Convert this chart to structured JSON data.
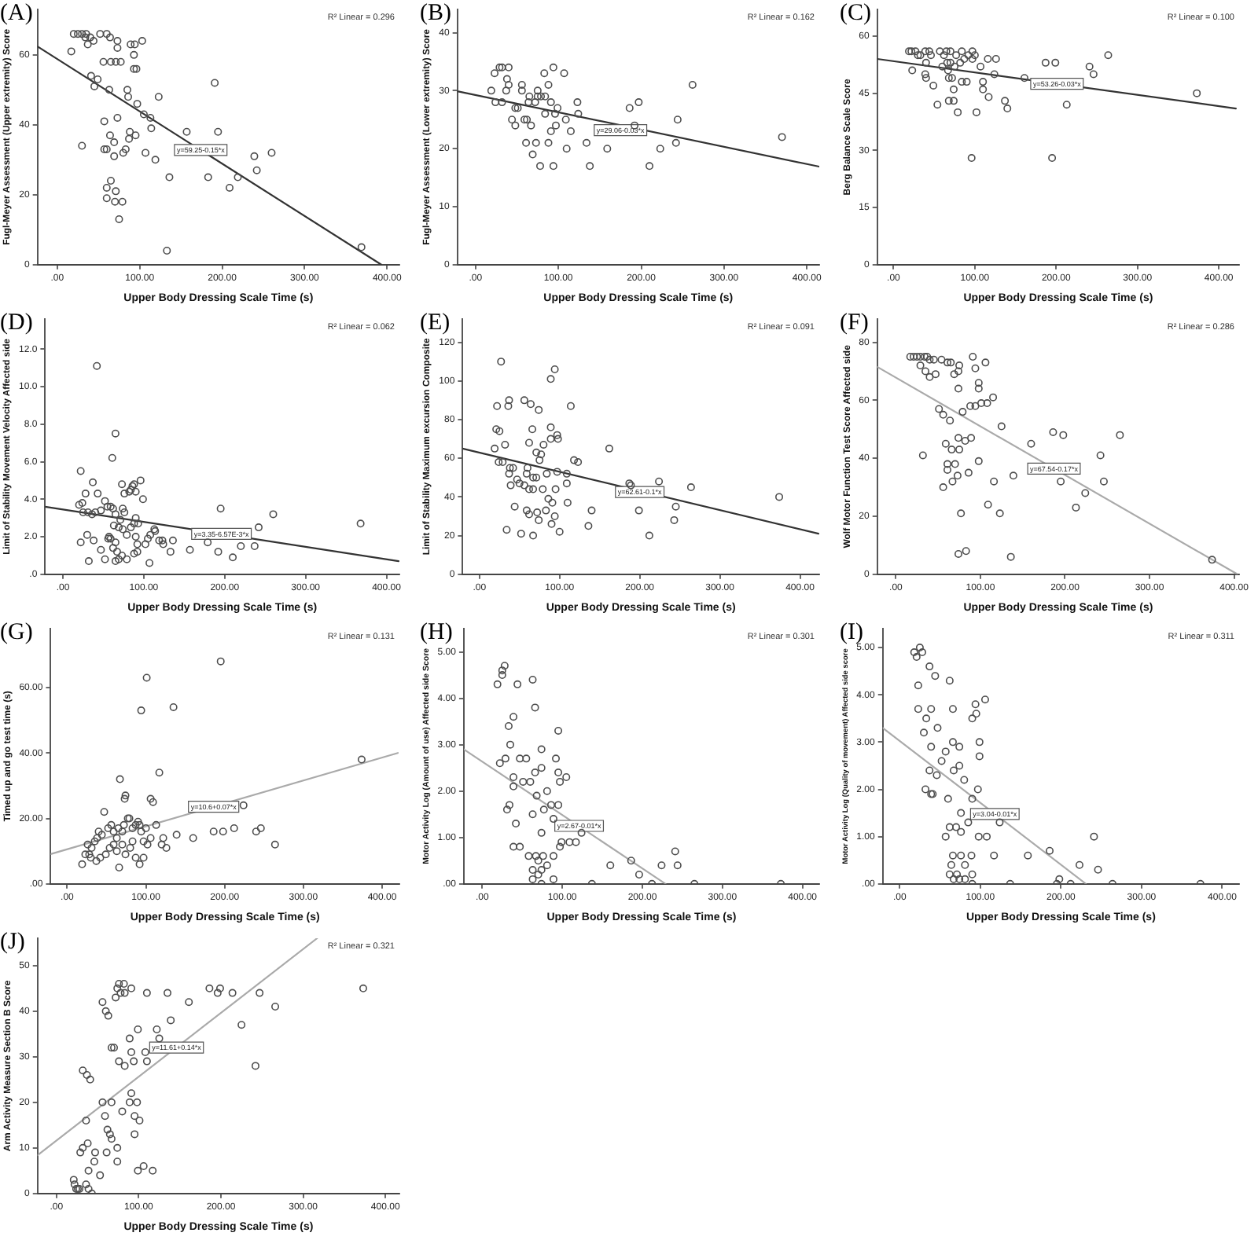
{
  "chart_data": [
    {
      "type": "scatter",
      "title": "(A)",
      "xlabel": "Upper Body Dressing Scale Time (s)",
      "ylabel": "Fugl-Meyer Assessment (Upper extremity) Score",
      "xlim": [
        -24,
        415
      ],
      "ylim": [
        0,
        73
      ],
      "xticks": [
        {
          "value": 0,
          "label": ".00"
        },
        {
          "value": 100,
          "label": "100.00"
        },
        {
          "value": 200,
          "label": "200.00"
        },
        {
          "value": 300,
          "label": "300.00"
        },
        {
          "value": 400,
          "label": "400.00"
        }
      ],
      "yticks": [
        0,
        20,
        40,
        60
      ],
      "marker": "circle",
      "annotations": [
        "R² Linear = 0.296",
        {
          "text": "y=59.25-0.15*x",
          "x": 174,
          "y": 32.8
        }
      ],
      "series": [
        {
          "color": "#4d4d4d",
          "x": [
            20,
            25,
            30,
            35,
            40,
            17,
            34,
            37,
            44,
            52,
            60,
            64,
            73,
            73,
            89,
            94,
            103,
            93,
            93,
            96,
            56,
            65,
            71,
            77,
            41,
            49,
            45,
            63,
            85,
            86,
            97,
            123,
            105,
            113,
            73,
            57,
            114,
            64,
            88,
            95,
            87,
            69,
            83,
            80,
            57,
            60,
            69,
            30,
            107,
            119,
            157,
            191,
            195,
            239,
            242,
            260,
            183,
            136,
            209,
            219,
            65,
            60,
            60,
            71,
            70,
            79,
            75,
            133,
            369
          ],
          "values": [
            66,
            66,
            66,
            66,
            65,
            61,
            65,
            63,
            64,
            66,
            66,
            65,
            64,
            62,
            63,
            63,
            64,
            60,
            56,
            56,
            58,
            58,
            58,
            58,
            54,
            53,
            51,
            50,
            50,
            48,
            46,
            48,
            43,
            42,
            42,
            41,
            39,
            37,
            38,
            37,
            36,
            35,
            33,
            32,
            33,
            33,
            31,
            34,
            32,
            30,
            38,
            52,
            38,
            31,
            27,
            32,
            25,
            25,
            22,
            25,
            24,
            22,
            19,
            21,
            18,
            18,
            13,
            4,
            5
          ]
        },
        {
          "type": "line",
          "marker": "none",
          "color": "#333333",
          "x": [
            -24,
            393
          ],
          "values": [
            62.4,
            0
          ]
        }
      ]
    },
    {
      "type": "scatter",
      "title": "(B)",
      "xlabel": "Upper Body Dressing Scale Time (s)",
      "ylabel": "Fugl-Meyer Assessment (Lower extremity) Score",
      "xlim": [
        -22,
        415
      ],
      "ylim": [
        0,
        44
      ],
      "xticks": [
        {
          "value": 0,
          "label": ".00"
        },
        {
          "value": 100,
          "label": "100.00"
        },
        {
          "value": 200,
          "label": "200.00"
        },
        {
          "value": 300,
          "label": "300.00"
        },
        {
          "value": 400,
          "label": "400.00"
        }
      ],
      "yticks": [
        0,
        10,
        20,
        30,
        40
      ],
      "marker": "circle",
      "annotations": [
        "R² Linear = 0.162",
        {
          "text": "y=29.06-0.03*x",
          "x": 175,
          "y": 23.2
        }
      ],
      "series": [
        {
          "color": "#4d4d4d",
          "x": [
            19,
            23,
            24,
            29,
            32,
            32,
            37,
            40,
            38,
            40,
            44,
            48,
            48,
            51,
            56,
            56,
            59,
            61,
            62,
            64,
            65,
            67,
            69,
            72,
            73,
            75,
            75,
            78,
            79,
            84,
            84,
            83,
            88,
            88,
            91,
            91,
            94,
            94,
            96,
            99,
            97,
            107,
            109,
            110,
            115,
            123,
            124,
            134,
            138,
            159,
            186,
            197,
            192,
            210,
            223,
            242,
            244,
            262,
            370
          ],
          "values": [
            30,
            33,
            28,
            34,
            34,
            28,
            30,
            31,
            32,
            34,
            25,
            24,
            27,
            27,
            31,
            30,
            25,
            21,
            25,
            28,
            29,
            24,
            19,
            28,
            21,
            29,
            30,
            17,
            29,
            29,
            26,
            33,
            31,
            21,
            28,
            23,
            34,
            17,
            26,
            27,
            24,
            33,
            25,
            20,
            23,
            28,
            26,
            21,
            17,
            20,
            27,
            28,
            24,
            17,
            20,
            21,
            25,
            31,
            22
          ]
        },
        {
          "type": "line",
          "marker": "none",
          "color": "#333333",
          "x": [
            -22,
            415
          ],
          "values": [
            29.9,
            16.9
          ]
        }
      ]
    },
    {
      "type": "scatter",
      "title": "(C)",
      "xlabel": "Upper Body Dressing Scale Time (s)",
      "ylabel": "Berg Balance Scale Score",
      "xlim": [
        -20,
        425
      ],
      "ylim": [
        0,
        67
      ],
      "xticks": [
        {
          "value": 0,
          "label": ".00"
        },
        {
          "value": 100,
          "label": "100.00"
        },
        {
          "value": 200,
          "label": "200.00"
        },
        {
          "value": 300,
          "label": "300.00"
        },
        {
          "value": 400,
          "label": "400.00"
        }
      ],
      "yticks": [
        0,
        15,
        30,
        45,
        60
      ],
      "marker": "circle",
      "annotations": [
        "R² Linear = 0.100",
        {
          "text": "y=53.26-0.03*x",
          "x": 201,
          "y": 47.5
        }
      ],
      "series": [
        {
          "color": "#4d4d4d",
          "x": [
            19,
            22,
            27,
            23,
            30,
            33,
            39,
            44,
            46,
            40,
            39,
            40,
            49,
            54,
            57,
            62,
            60,
            65,
            66,
            67,
            68,
            70,
            70,
            72,
            75,
            77,
            74,
            68,
            74,
            79,
            82,
            84,
            84,
            87,
            90,
            92,
            97,
            97,
            100,
            102,
            107,
            110,
            110,
            116,
            117,
            124,
            126,
            137,
            140,
            161,
            187,
            199,
            213,
            241,
            246,
            264,
            373,
            96,
            195
          ],
          "values": [
            56,
            56,
            56,
            51,
            55,
            55,
            56,
            56,
            55,
            53,
            50,
            49,
            47,
            42,
            56,
            55,
            52,
            56,
            53,
            51,
            49,
            56,
            53,
            49,
            52,
            55,
            46,
            43,
            43,
            40,
            53,
            56,
            48,
            54,
            48,
            55,
            56,
            54,
            55,
            40,
            52,
            48,
            46,
            54,
            44,
            50,
            54,
            43,
            41,
            49,
            53,
            53,
            42,
            52,
            50,
            55,
            45,
            28,
            28
          ]
        },
        {
          "type": "line",
          "marker": "none",
          "color": "#333333",
          "x": [
            -20,
            421
          ],
          "values": [
            54.0,
            41.0
          ]
        }
      ]
    },
    {
      "type": "scatter",
      "title": "(D)",
      "xlabel": "Upper Body Dressing Scale Time (s)",
      "ylabel": "Limit of Stability Movement Velocity Affected side",
      "xlim": [
        -22,
        416
      ],
      "ylim": [
        0,
        13.6
      ],
      "xticks": [
        {
          "value": 0,
          "label": ".00"
        },
        {
          "value": 100,
          "label": "100.00"
        },
        {
          "value": 200,
          "label": "200.00"
        },
        {
          "value": 300,
          "label": "300.00"
        },
        {
          "value": 400,
          "label": "400.00"
        }
      ],
      "yticks": [
        {
          "value": 0,
          "label": ".0"
        },
        {
          "value": 2,
          "label": "2.0"
        },
        {
          "value": 4,
          "label": "4.0"
        },
        {
          "value": 6,
          "label": "6.0"
        },
        {
          "value": 8,
          "label": "8.0"
        },
        {
          "value": 10,
          "label": "10.0"
        },
        {
          "value": 12,
          "label": "12.0"
        }
      ],
      "marker": "circle",
      "annotations": [
        "R² Linear = 0.062",
        {
          "text": "y=3.35-6.57E-3*x",
          "x": 196,
          "y": 2.15
        }
      ],
      "series": [
        {
          "color": "#4d4d4d",
          "x": [
            22,
            42,
            65,
            61,
            20,
            24,
            28,
            37,
            43,
            25,
            31,
            36,
            40,
            47,
            55,
            59,
            62,
            52,
            73,
            76,
            74,
            76,
            65,
            71,
            63,
            69,
            74,
            79,
            84,
            88,
            90,
            93,
            86,
            88,
            90,
            96,
            99,
            90,
            92,
            84,
            82,
            22,
            30,
            38,
            47,
            56,
            59,
            57,
            65,
            62,
            67,
            73,
            69,
            52,
            32,
            65,
            79,
            88,
            92,
            102,
            105,
            108,
            113,
            114,
            119,
            123,
            124,
            107,
            133,
            136,
            157,
            179,
            192,
            195,
            210,
            220,
            237,
            242,
            260,
            368
          ],
          "values": [
            5.5,
            11.1,
            7.5,
            6.2,
            3.7,
            3.8,
            4.3,
            4.9,
            4.3,
            3.3,
            3.3,
            3.2,
            3.3,
            3.4,
            3.6,
            3.6,
            3.5,
            3.9,
            4.8,
            4.3,
            3.5,
            3.3,
            3.2,
            2.9,
            2.6,
            2.5,
            2.4,
            2.1,
            2.5,
            2.7,
            3.0,
            2.7,
            4.7,
            4.8,
            4.4,
            5.0,
            4.0,
            2.0,
            1.6,
            4.5,
            4.4,
            1.7,
            2.1,
            1.8,
            1.3,
            1.9,
            1.9,
            2.0,
            1.7,
            1.4,
            1.2,
            1.0,
            0.8,
            0.8,
            0.7,
            0.7,
            0.8,
            1.1,
            1.2,
            1.6,
            1.9,
            2.1,
            2.4,
            2.3,
            1.8,
            1.8,
            1.6,
            0.6,
            1.2,
            1.8,
            1.3,
            1.7,
            1.2,
            3.5,
            0.9,
            1.5,
            1.5,
            2.5,
            3.2,
            2.7
          ]
        },
        {
          "type": "line",
          "marker": "none",
          "color": "#333333",
          "x": [
            -22,
            415
          ],
          "values": [
            3.6,
            0.7
          ]
        }
      ]
    },
    {
      "type": "scatter",
      "title": "(E)",
      "xlabel": "Upper Body Dressing Scale Time (s)",
      "ylabel": "Limit of Stability Maximum excursion Composite",
      "xlim": [
        -21,
        424
      ],
      "ylim": [
        0,
        132
      ],
      "xticks": [
        {
          "value": 0,
          "label": ".00"
        },
        {
          "value": 100,
          "label": "100.00"
        },
        {
          "value": 200,
          "label": "200.00"
        },
        {
          "value": 300,
          "label": "300.00"
        },
        {
          "value": 400,
          "label": "400.00"
        }
      ],
      "yticks": [
        0,
        20,
        40,
        60,
        80,
        100,
        120
      ],
      "marker": "circle",
      "annotations": [
        "R² Linear = 0.091",
        {
          "text": "y=62.61-0.1*x",
          "x": 200,
          "y": 42.5
        }
      ],
      "series": [
        {
          "color": "#4d4d4d",
          "x": [
            27,
            22,
            37,
            36,
            21,
            25,
            19,
            32,
            24,
            29,
            38,
            42,
            37,
            39,
            47,
            50,
            44,
            34,
            52,
            67,
            56,
            64,
            74,
            66,
            62,
            71,
            80,
            77,
            75,
            60,
            59,
            67,
            71,
            56,
            67,
            62,
            79,
            84,
            86,
            91,
            59,
            62,
            72,
            74,
            83,
            94,
            90,
            100,
            89,
            94,
            89,
            97,
            98,
            89,
            97,
            95,
            109,
            109,
            110,
            118,
            123,
            114,
            140,
            136,
            162,
            187,
            189,
            199,
            212,
            224,
            243,
            245,
            264,
            374
          ],
          "values": [
            110,
            87,
            90,
            87,
            75,
            74,
            65,
            67,
            58,
            58,
            55,
            55,
            52,
            46,
            49,
            47,
            35,
            23,
            21,
            20,
            90,
            88,
            85,
            75,
            68,
            63,
            67,
            62,
            59,
            55,
            52,
            50,
            50,
            46,
            44,
            44,
            44,
            52,
            39,
            37,
            33,
            31,
            32,
            28,
            33,
            30,
            26,
            22,
            101,
            106,
            76,
            72,
            70,
            70,
            53,
            44,
            52,
            47,
            37,
            59,
            58,
            87,
            33,
            25,
            65,
            47,
            46,
            33,
            20,
            48,
            28,
            35,
            45,
            40
          ]
        },
        {
          "type": "line",
          "marker": "none",
          "color": "#333333",
          "x": [
            -21,
            423
          ],
          "values": [
            65,
            21
          ]
        }
      ]
    },
    {
      "type": "scatter",
      "title": "(F)",
      "xlabel": "Upper Body Dressing Scale Time (s)",
      "ylabel": "Wolf Motor Function Test Score Affected side",
      "xlim": [
        -22,
        406
      ],
      "ylim": [
        0,
        88
      ],
      "xticks": [
        {
          "value": 0,
          "label": ".00"
        },
        {
          "value": 100,
          "label": "100.00"
        },
        {
          "value": 200,
          "label": "200.00"
        },
        {
          "value": 300,
          "label": "300.00"
        },
        {
          "value": 400,
          "label": "400.00"
        }
      ],
      "yticks": [
        0,
        20,
        40,
        60,
        80
      ],
      "marker": "circle",
      "annotations": [
        "R² Linear = 0.286",
        {
          "text": "y=67.54-0.17*x",
          "x": 187,
          "y": 36.4
        }
      ],
      "series": [
        {
          "color": "#4d4d4d",
          "x": [
            17,
            21,
            25,
            29,
            34,
            37,
            40,
            45,
            54,
            61,
            65,
            75,
            91,
            106,
            94,
            29,
            35,
            40,
            47,
            69,
            74,
            74,
            98,
            98,
            115,
            101,
            94,
            88,
            108,
            79,
            51,
            56,
            64,
            125,
            59,
            66,
            74,
            82,
            89,
            75,
            32,
            61,
            61,
            70,
            86,
            73,
            67,
            56,
            98,
            116,
            139,
            109,
            123,
            77,
            74,
            83,
            136,
            160,
            186,
            198,
            195,
            224,
            213,
            242,
            246,
            265,
            374
          ],
          "values": [
            75,
            75,
            75,
            75,
            75,
            75,
            74,
            74,
            74,
            73,
            73,
            72,
            75,
            73,
            71,
            72,
            70,
            68,
            69,
            69,
            70,
            64,
            66,
            64,
            61,
            59,
            58,
            58,
            59,
            56,
            57,
            55,
            53,
            51,
            45,
            43,
            47,
            46,
            47,
            43,
            41,
            38,
            36,
            38,
            35,
            34,
            32,
            30,
            39,
            32,
            34,
            24,
            21,
            21,
            7,
            8,
            6,
            45,
            49,
            48,
            32,
            28,
            23,
            41,
            32,
            48,
            5
          ]
        },
        {
          "type": "line",
          "marker": "none",
          "color": "#aaaaaa",
          "x": [
            -22,
            404
          ],
          "values": [
            71.5,
            0
          ]
        }
      ]
    },
    {
      "type": "scatter",
      "title": "(G)",
      "xlabel": "Upper Body Dressing Scale Time (s)",
      "ylabel": "Timed up and go test time (s)",
      "xlim": [
        -21,
        422
      ],
      "ylim": [
        0,
        78
      ],
      "xticks": [
        {
          "value": 0,
          "label": ".00"
        },
        {
          "value": 100,
          "label": "100.00"
        },
        {
          "value": 200,
          "label": "200.00"
        },
        {
          "value": 300,
          "label": "300.00"
        },
        {
          "value": 400,
          "label": "400.00"
        }
      ],
      "yticks": [
        {
          "value": 0,
          "label": ".00"
        },
        {
          "value": 20,
          "label": "20.00"
        },
        {
          "value": 40,
          "label": "40.00"
        },
        {
          "value": 60,
          "label": "60.00"
        }
      ],
      "marker": "circle",
      "annotations": [
        "R² Linear = 0.131",
        {
          "text": "y=10.6+0.07*x",
          "x": 186,
          "y": 23.6
        }
      ],
      "series": [
        {
          "color": "#4d4d4d",
          "x": [
            19,
            23,
            26,
            28,
            31,
            35,
            38,
            40,
            44,
            47,
            52,
            56,
            59,
            59,
            63,
            66,
            65,
            67,
            70,
            72,
            73,
            74,
            77,
            79,
            83,
            87,
            90,
            92,
            94,
            101,
            94,
            97,
            100,
            106,
            109,
            117,
            122,
            126,
            135,
            139,
            160,
            186,
            195,
            198,
            212,
            224,
            240,
            246,
            264,
            374,
            30,
            37,
            42,
            49,
            54,
            63,
            70,
            74,
            80,
            83,
            87,
            92,
            97,
            102,
            106,
            113,
            120
          ],
          "values": [
            6,
            9,
            12,
            9,
            11,
            13,
            14,
            16,
            15,
            22,
            17,
            18,
            16,
            12,
            14,
            5,
            17,
            32,
            16,
            18,
            26,
            27,
            20,
            20,
            17,
            18,
            19,
            18,
            53,
            63,
            16,
            13,
            17,
            26,
            25,
            34,
            14,
            11,
            54,
            15,
            14,
            16,
            68,
            16,
            17,
            24,
            16,
            17,
            12,
            38,
            8,
            7,
            8,
            9,
            11,
            10,
            12,
            9,
            11,
            13,
            8,
            6,
            8,
            12,
            14,
            18,
            12
          ]
        },
        {
          "type": "line",
          "marker": "none",
          "color": "#aaaaaa",
          "x": [
            -21,
            420
          ],
          "values": [
            9.1,
            40.0
          ]
        }
      ]
    },
    {
      "type": "scatter",
      "title": "(H)",
      "xlabel": "Upper Body Dressing Scale Time (s)",
      "ylabel": "Motor Activity Log (Amount of use) Affected side Score",
      "xlim": [
        -23,
        421
      ],
      "ylim": [
        0,
        5.5
      ],
      "xticks": [
        {
          "value": 0,
          "label": ".00"
        },
        {
          "value": 100,
          "label": "100.00"
        },
        {
          "value": 200,
          "label": "200.00"
        },
        {
          "value": 300,
          "label": "300.00"
        },
        {
          "value": 400,
          "label": "400.00"
        }
      ],
      "yticks": [
        {
          "value": 0,
          "label": ".00"
        },
        {
          "value": 1,
          "label": "1.00"
        },
        {
          "value": 2,
          "label": "2.00"
        },
        {
          "value": 3,
          "label": "3.00"
        },
        {
          "value": 4,
          "label": "4.00"
        },
        {
          "value": 5,
          "label": "5.00"
        }
      ],
      "marker": "circle",
      "annotations": [
        "R² Linear = 0.301",
        {
          "text": "y=2.67-0.01*x",
          "x": 121,
          "y": 1.25
        }
      ],
      "series": [
        {
          "color": "#4d4d4d",
          "x": [
            19,
            25,
            28,
            25,
            44,
            63,
            39,
            66,
            33,
            35,
            22,
            29,
            47,
            55,
            74,
            95,
            92,
            95,
            105,
            66,
            74,
            39,
            39,
            51,
            60,
            68,
            81,
            86,
            77,
            95,
            97,
            34,
            31,
            42,
            63,
            74,
            89,
            97,
            99,
            109,
            117,
            39,
            47,
            58,
            67,
            76,
            70,
            81,
            63,
            74,
            70,
            89,
            89,
            63,
            74,
            124,
            160,
            186,
            196,
            224,
            241,
            244,
            137,
            212,
            265,
            373
          ],
          "values": [
            4.3,
            4.6,
            4.7,
            4.5,
            4.3,
            4.4,
            3.6,
            3.8,
            3.4,
            3.0,
            2.6,
            2.7,
            2.7,
            2.7,
            2.9,
            3.3,
            2.7,
            2.4,
            2.3,
            2.4,
            2.5,
            2.3,
            2.1,
            2.2,
            2.2,
            1.9,
            2.0,
            1.7,
            1.6,
            1.7,
            2.2,
            1.7,
            1.6,
            1.3,
            1.5,
            1.1,
            1.4,
            0.8,
            0.9,
            0.9,
            0.9,
            0.8,
            0.8,
            0.6,
            0.6,
            0.6,
            0.5,
            0.4,
            0.3,
            0.3,
            0.2,
            0.6,
            0.1,
            0.1,
            0,
            1.1,
            0.4,
            0.5,
            0.2,
            0.4,
            0.7,
            0.4,
            0,
            0,
            0,
            0
          ]
        },
        {
          "type": "line",
          "marker": "none",
          "color": "#aaaaaa",
          "x": [
            -23,
            229
          ],
          "values": [
            2.9,
            0
          ]
        }
      ]
    },
    {
      "type": "scatter",
      "title": "(I)",
      "xlabel": "Upper Body Dressing Scale Time (s)",
      "ylabel": "Motor Activity Log (Quality of movement) Affected side score",
      "xlim": [
        -21,
        421
      ],
      "ylim": [
        0,
        5.4
      ],
      "xticks": [
        {
          "value": 0,
          "label": ".00"
        },
        {
          "value": 100,
          "label": "100.00"
        },
        {
          "value": 200,
          "label": "200.00"
        },
        {
          "value": 300,
          "label": "300.00"
        },
        {
          "value": 400,
          "label": "400.00"
        }
      ],
      "yticks": [
        {
          "value": 0,
          "label": ".00"
        },
        {
          "value": 1,
          "label": "1.00"
        },
        {
          "value": 2,
          "label": "2.00"
        },
        {
          "value": 3,
          "label": "3.00"
        },
        {
          "value": 4,
          "label": "4.00"
        },
        {
          "value": 5,
          "label": "5.00"
        }
      ],
      "marker": "circle",
      "annotations": [
        "R² Linear = 0.311",
        {
          "text": "y=3.04-0.01*x",
          "x": 118,
          "y": 1.48
        }
      ],
      "series": [
        {
          "color": "#4d4d4d",
          "x": [
            18,
            21,
            25,
            28,
            23,
            37,
            44,
            62,
            23,
            33,
            39,
            47,
            66,
            30,
            39,
            57,
            74,
            66,
            52,
            67,
            74,
            37,
            46,
            80,
            97,
            90,
            32,
            39,
            41,
            60,
            90,
            95,
            94,
            106,
            99,
            99,
            76,
            85,
            76,
            70,
            62,
            57,
            98,
            108,
            124,
            117,
            159,
            186,
            241,
            246,
            223,
            66,
            76,
            89,
            64,
            81,
            62,
            71,
            90,
            74,
            67,
            81,
            137,
            198,
            195,
            212,
            264,
            373,
            90
          ],
          "values": [
            4.9,
            4.8,
            5.0,
            4.9,
            4.2,
            4.6,
            4.4,
            4.3,
            3.7,
            3.5,
            3.7,
            3.3,
            3.7,
            3.2,
            2.9,
            2.8,
            2.9,
            3.0,
            2.6,
            2.4,
            2.5,
            2.4,
            2.3,
            2.2,
            2.0,
            1.8,
            2.0,
            1.9,
            1.9,
            1.8,
            3.5,
            3.6,
            3.8,
            3.9,
            3.0,
            2.7,
            1.5,
            1.3,
            1.1,
            1.2,
            1.2,
            1.0,
            1.0,
            1.0,
            1.3,
            0.6,
            0.6,
            0.7,
            1.0,
            0.3,
            0.4,
            0.6,
            0.6,
            0.6,
            0.4,
            0.4,
            0.2,
            0.2,
            0.2,
            0.1,
            0.1,
            0.1,
            0,
            0.1,
            0,
            0,
            0,
            0,
            0
          ]
        },
        {
          "type": "line",
          "marker": "none",
          "color": "#aaaaaa",
          "x": [
            -21,
            231
          ],
          "values": [
            3.3,
            0
          ]
        }
      ]
    },
    {
      "type": "scatter",
      "title": "(J)",
      "xlabel": "Upper Body Dressing Scale Time (s)",
      "ylabel": "Arm Activity Measure Section B Score",
      "xlim": [
        -23,
        417
      ],
      "ylim": [
        0,
        56
      ],
      "xticks": [
        {
          "value": 0,
          "label": ".00"
        },
        {
          "value": 100,
          "label": "100.00"
        },
        {
          "value": 200,
          "label": "200.00"
        },
        {
          "value": 300,
          "label": "300.00"
        },
        {
          "value": 400,
          "label": "400.00"
        }
      ],
      "yticks": [
        0,
        10,
        20,
        30,
        40,
        50
      ],
      "marker": "circle",
      "annotations": [
        "R² Linear = 0.321",
        {
          "text": "y=11.61+0.14*x",
          "x": 146,
          "y": 32
        }
      ],
      "series": [
        {
          "color": "#4d4d4d",
          "x": [
            22,
            21,
            24,
            26,
            28,
            36,
            39,
            43,
            29,
            32,
            38,
            39,
            46,
            47,
            53,
            36,
            32,
            37,
            41,
            56,
            59,
            61,
            62,
            65,
            67,
            67,
            60,
            63,
            56,
            72,
            74,
            76,
            78,
            82,
            83,
            91,
            67,
            70,
            76,
            83,
            89,
            91,
            94,
            91,
            89,
            98,
            99,
            95,
            101,
            95,
            74,
            74,
            80,
            99,
            106,
            117,
            110,
            110,
            122,
            125,
            108,
            135,
            139,
            161,
            186,
            196,
            199,
            214,
            225,
            242,
            247,
            266,
            373
          ],
          "values": [
            2,
            3,
            1,
            1,
            1,
            2,
            1,
            0,
            9,
            10,
            11,
            5,
            7,
            9,
            4,
            16,
            27,
            26,
            25,
            20,
            17,
            9,
            14,
            13,
            12,
            20,
            40,
            39,
            42,
            43,
            45,
            46,
            44,
            46,
            44,
            45,
            32,
            32,
            29,
            28,
            34,
            31,
            29,
            22,
            20,
            20,
            36,
            17,
            16,
            13,
            10,
            7,
            18,
            5,
            6,
            5,
            29,
            44,
            36,
            34,
            31,
            44,
            38,
            42,
            45,
            44,
            45,
            44,
            37,
            28,
            44,
            41,
            45
          ]
        },
        {
          "type": "line",
          "marker": "none",
          "color": "#aaaaaa",
          "x": [
            -23,
            317
          ],
          "values": [
            8.4,
            56
          ]
        }
      ]
    }
  ]
}
